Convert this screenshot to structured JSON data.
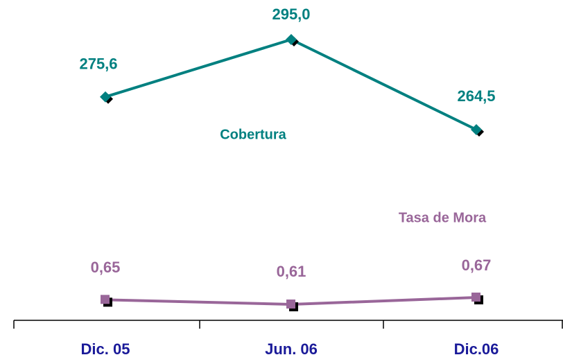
{
  "chart_data": {
    "type": "line",
    "categories": [
      "Dic. 05",
      "Jun. 06",
      "Dic.06"
    ],
    "series": [
      {
        "name": "Cobertura",
        "color": "#008080",
        "values": [
          275.6,
          295.0,
          264.5
        ],
        "value_labels": [
          "275,6",
          "295,0",
          "264,5"
        ]
      },
      {
        "name": "Tasa de Mora",
        "color": "#996699",
        "axis": "y2",
        "values": [
          0.65,
          0.61,
          0.67
        ],
        "value_labels": [
          "0,65",
          "0,61",
          "0,67"
        ]
      }
    ]
  }
}
